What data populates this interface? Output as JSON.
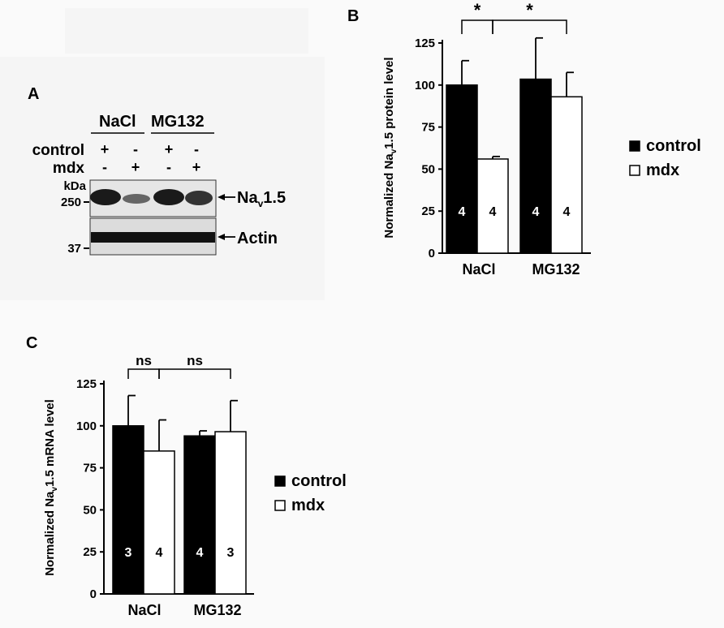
{
  "panel_labels": {
    "a": "A",
    "b": "B",
    "c": "C"
  },
  "blot": {
    "headers": [
      "NaCl",
      "MG132"
    ],
    "row_labels": [
      "control",
      "mdx"
    ],
    "signs": [
      [
        "+",
        "-",
        "+",
        "-"
      ],
      [
        "-",
        "+",
        "-",
        "+"
      ]
    ],
    "kda_label": "kDa",
    "markers": [
      "250",
      "37"
    ],
    "band_prefix": "Na",
    "band_sub": "v",
    "band_suffix": "1.5",
    "actin_label": "Actin"
  },
  "chart_data": [
    {
      "type": "bar",
      "panel": "B",
      "ylabel_prefix": "Normalized Na",
      "ylabel_sub": "v",
      "ylabel_suffix": "1.5 protein level",
      "categories": [
        "NaCl",
        "MG132"
      ],
      "ylim": [
        0,
        125
      ],
      "yticks": [
        0,
        25,
        50,
        75,
        100,
        125
      ],
      "series": [
        {
          "name": "control",
          "color": "#000000",
          "values": [
            100,
            103.5
          ],
          "errors": [
            14.5,
            24.5
          ],
          "n": [
            "4",
            "4"
          ]
        },
        {
          "name": "mdx",
          "color": "#ffffff",
          "values": [
            56,
            93
          ],
          "errors": [
            1.5,
            14.5
          ],
          "n": [
            "4",
            "4"
          ]
        }
      ],
      "significance": [
        "*",
        "*"
      ],
      "legend": [
        "control",
        "mdx"
      ],
      "legend_position": "right"
    },
    {
      "type": "bar",
      "panel": "C",
      "ylabel_prefix": "Normalized Na",
      "ylabel_sub": "v",
      "ylabel_suffix": "1.5 mRNA level",
      "categories": [
        "NaCl",
        "MG132"
      ],
      "ylim": [
        0,
        125
      ],
      "yticks": [
        0,
        25,
        50,
        75,
        100,
        125
      ],
      "series": [
        {
          "name": "control",
          "color": "#000000",
          "values": [
            100,
            94
          ],
          "errors": [
            18,
            3
          ],
          "n": [
            "3",
            "4"
          ]
        },
        {
          "name": "mdx",
          "color": "#ffffff",
          "values": [
            85,
            96.5
          ],
          "errors": [
            18.5,
            18.5
          ],
          "n": [
            "4",
            "3"
          ]
        }
      ],
      "significance": [
        "ns",
        "ns"
      ],
      "legend": [
        "control",
        "mdx"
      ],
      "legend_position": "right"
    }
  ]
}
